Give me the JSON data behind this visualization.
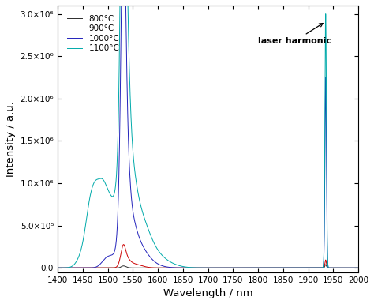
{
  "xlabel": "Wavelength / nm",
  "ylabel": "Intensity / a.u.",
  "xlim": [
    1400,
    2000
  ],
  "ylim": [
    -50000.0,
    3100000.0
  ],
  "yticks": [
    0.0,
    500000.0,
    1000000.0,
    1500000.0,
    2000000.0,
    2500000.0,
    3000000.0
  ],
  "ytick_labels": [
    "0.0",
    "5.0×10⁵",
    "1.0×10⁶",
    "1.5×10⁶",
    "2.0×10⁶",
    "2.5×10⁶",
    "3.0×10⁶"
  ],
  "xticks": [
    1400,
    1450,
    1500,
    1550,
    1600,
    1650,
    1700,
    1750,
    1800,
    1850,
    1900,
    1950,
    2000
  ],
  "colors": {
    "800": "#2b2b2b",
    "900": "#cc0000",
    "1000": "#2222bb",
    "1100": "#00aaaa"
  },
  "legend_labels": [
    "800°C",
    "900°C",
    "1000°C",
    "1100°C"
  ],
  "annotation_text": "laser harmonic",
  "laser_x": 1935,
  "laser_1100_peak": 3000000.0,
  "laser_1000_peak": 2250000.0,
  "laser_900_peak": 95000.0,
  "laser_800_peak": 40000.0,
  "background_color": "#ffffff"
}
